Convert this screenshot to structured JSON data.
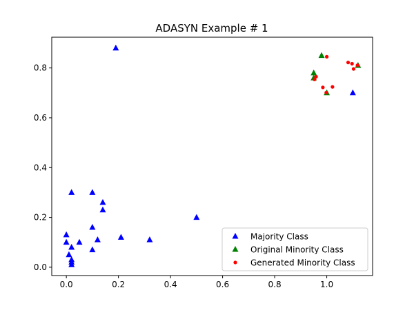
{
  "chart_data": {
    "type": "scatter",
    "title": "ADASYN Example # 1",
    "xlabel": "",
    "ylabel": "",
    "xlim": [
      -0.056,
      1.176
    ],
    "ylim": [
      -0.0335,
      0.9235
    ],
    "xticks": [
      "0.0",
      "0.2",
      "0.4",
      "0.6",
      "0.8",
      "1.0"
    ],
    "xtick_values": [
      0,
      0.2,
      0.4,
      0.6,
      0.8,
      1.0
    ],
    "yticks": [
      "0.0",
      "0.2",
      "0.4",
      "0.6",
      "0.8"
    ],
    "ytick_values": [
      0,
      0.2,
      0.4,
      0.6,
      0.8
    ],
    "grid": false,
    "legend_position": "lower-right",
    "series": [
      {
        "name": "Majority Class",
        "marker": "triangle",
        "color": "#0000ff",
        "points": [
          [
            0.19,
            0.88
          ],
          [
            0.02,
            0.3
          ],
          [
            0.1,
            0.3
          ],
          [
            0.14,
            0.26
          ],
          [
            0.14,
            0.23
          ],
          [
            0.1,
            0.16
          ],
          [
            0.0,
            0.13
          ],
          [
            0.0,
            0.1
          ],
          [
            0.05,
            0.1
          ],
          [
            0.12,
            0.11
          ],
          [
            0.21,
            0.12
          ],
          [
            0.32,
            0.11
          ],
          [
            0.5,
            0.2
          ],
          [
            0.02,
            0.08
          ],
          [
            0.1,
            0.07
          ],
          [
            0.01,
            0.05
          ],
          [
            0.02,
            0.03
          ],
          [
            0.02,
            0.02
          ],
          [
            0.02,
            0.01
          ],
          [
            1.1,
            0.7
          ]
        ]
      },
      {
        "name": "Original Minority Class",
        "marker": "triangle",
        "color": "#008000",
        "points": [
          [
            0.98,
            0.85
          ],
          [
            0.95,
            0.78
          ],
          [
            0.95,
            0.76
          ],
          [
            1.0,
            0.7
          ],
          [
            1.12,
            0.81
          ]
        ]
      },
      {
        "name": "Generated Minority Class",
        "marker": "circle",
        "color": "#ff0000",
        "points": [
          [
            1.0,
            0.845
          ],
          [
            1.082,
            0.822
          ],
          [
            1.097,
            0.817
          ],
          [
            1.118,
            0.811
          ],
          [
            1.103,
            0.796
          ],
          [
            0.959,
            0.765
          ],
          [
            0.953,
            0.754
          ],
          [
            0.985,
            0.722
          ],
          [
            1.022,
            0.724
          ],
          [
            0.998,
            0.701
          ]
        ]
      }
    ]
  }
}
